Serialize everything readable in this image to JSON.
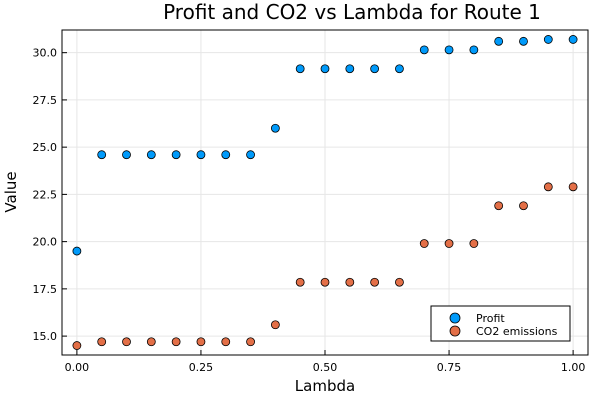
{
  "chart_data": {
    "type": "scatter",
    "title": "Profit and CO2 vs Lambda for Route 1",
    "xlabel": "Lambda",
    "ylabel": "Value",
    "xlim": [
      -0.03,
      1.03
    ],
    "ylim": [
      14.0,
      31.2
    ],
    "xticks": [
      0.0,
      0.25,
      0.5,
      0.75,
      1.0
    ],
    "xtick_labels": [
      "0.00",
      "0.25",
      "0.50",
      "0.75",
      "1.00"
    ],
    "yticks": [
      15.0,
      17.5,
      20.0,
      22.5,
      25.0,
      27.5,
      30.0
    ],
    "ytick_labels": [
      "15.0",
      "17.5",
      "20.0",
      "22.5",
      "25.0",
      "27.5",
      "30.0"
    ],
    "grid": true,
    "legend_position": "bottom-right",
    "x": [
      0.0,
      0.05,
      0.1,
      0.15,
      0.2,
      0.25,
      0.3,
      0.35,
      0.4,
      0.45,
      0.5,
      0.55,
      0.6,
      0.65,
      0.7,
      0.75,
      0.8,
      0.85,
      0.9,
      0.95,
      1.0
    ],
    "series": [
      {
        "name": "Profit",
        "color": "#009AFA",
        "values": [
          19.5,
          24.6,
          24.6,
          24.6,
          24.6,
          24.6,
          24.6,
          24.6,
          26.0,
          29.15,
          29.15,
          29.15,
          29.15,
          29.15,
          30.15,
          30.15,
          30.15,
          30.6,
          30.6,
          30.7,
          30.7
        ]
      },
      {
        "name": "CO2 emissions",
        "color": "#E36F47",
        "values": [
          14.5,
          14.7,
          14.7,
          14.7,
          14.7,
          14.7,
          14.7,
          14.7,
          15.6,
          17.85,
          17.85,
          17.85,
          17.85,
          17.85,
          19.9,
          19.9,
          19.9,
          21.9,
          21.9,
          22.9,
          22.9
        ]
      }
    ]
  }
}
